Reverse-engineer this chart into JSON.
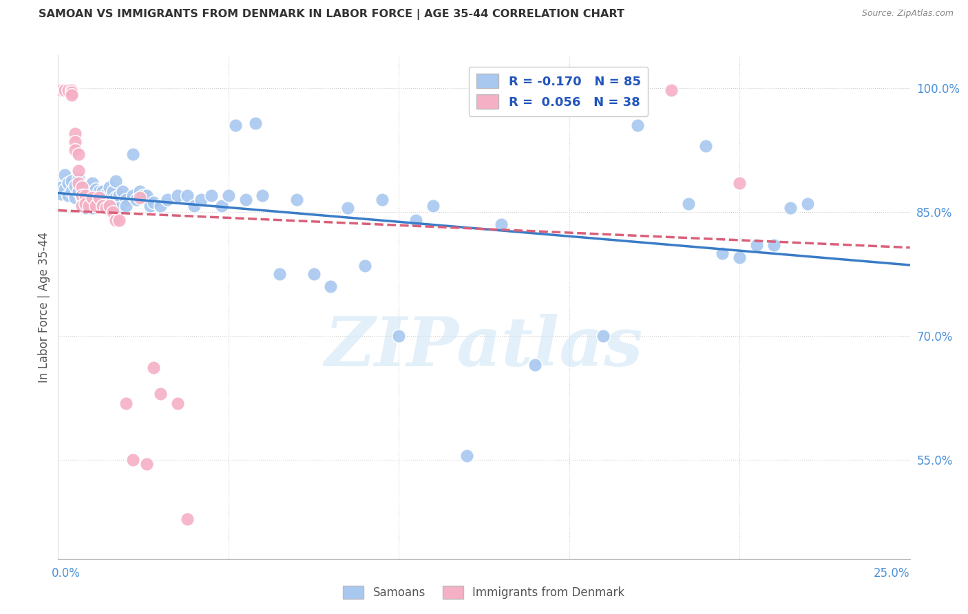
{
  "title": "SAMOAN VS IMMIGRANTS FROM DENMARK IN LABOR FORCE | AGE 35-44 CORRELATION CHART",
  "source": "Source: ZipAtlas.com",
  "ylabel": "In Labor Force | Age 35-44",
  "blue_color": "#a8c8f0",
  "pink_color": "#f5b0c5",
  "blue_line_color": "#3a7cc7",
  "pink_line_color": "#d9607a",
  "watermark_text": "ZIPatlas",
  "xmin": 0.0,
  "xmax": 0.25,
  "ymin": 0.43,
  "ymax": 1.04,
  "gridline_y": [
    0.55,
    0.7,
    0.85,
    1.0
  ],
  "gridline_x": [
    0.05,
    0.1,
    0.15,
    0.2,
    0.25
  ],
  "blue_dots": [
    [
      0.001,
      0.88
    ],
    [
      0.001,
      0.872
    ],
    [
      0.002,
      0.895
    ],
    [
      0.002,
      0.878
    ],
    [
      0.003,
      0.885
    ],
    [
      0.003,
      0.87
    ],
    [
      0.004,
      0.888
    ],
    [
      0.004,
      0.875
    ],
    [
      0.005,
      0.882
    ],
    [
      0.005,
      0.868
    ],
    [
      0.006,
      0.89
    ],
    [
      0.006,
      0.875
    ],
    [
      0.007,
      0.882
    ],
    [
      0.007,
      0.868
    ],
    [
      0.007,
      0.858
    ],
    [
      0.008,
      0.88
    ],
    [
      0.008,
      0.865
    ],
    [
      0.008,
      0.855
    ],
    [
      0.009,
      0.878
    ],
    [
      0.009,
      0.862
    ],
    [
      0.01,
      0.885
    ],
    [
      0.01,
      0.87
    ],
    [
      0.01,
      0.855
    ],
    [
      0.011,
      0.878
    ],
    [
      0.011,
      0.862
    ],
    [
      0.012,
      0.875
    ],
    [
      0.012,
      0.862
    ],
    [
      0.013,
      0.875
    ],
    [
      0.013,
      0.858
    ],
    [
      0.014,
      0.872
    ],
    [
      0.014,
      0.858
    ],
    [
      0.015,
      0.88
    ],
    [
      0.015,
      0.862
    ],
    [
      0.016,
      0.875
    ],
    [
      0.016,
      0.858
    ],
    [
      0.017,
      0.888
    ],
    [
      0.017,
      0.868
    ],
    [
      0.018,
      0.87
    ],
    [
      0.018,
      0.855
    ],
    [
      0.019,
      0.875
    ],
    [
      0.02,
      0.865
    ],
    [
      0.02,
      0.858
    ],
    [
      0.022,
      0.92
    ],
    [
      0.022,
      0.87
    ],
    [
      0.023,
      0.865
    ],
    [
      0.024,
      0.875
    ],
    [
      0.025,
      0.87
    ],
    [
      0.026,
      0.87
    ],
    [
      0.027,
      0.858
    ],
    [
      0.028,
      0.862
    ],
    [
      0.03,
      0.858
    ],
    [
      0.032,
      0.865
    ],
    [
      0.035,
      0.87
    ],
    [
      0.038,
      0.87
    ],
    [
      0.04,
      0.858
    ],
    [
      0.042,
      0.865
    ],
    [
      0.045,
      0.87
    ],
    [
      0.048,
      0.858
    ],
    [
      0.05,
      0.87
    ],
    [
      0.052,
      0.955
    ],
    [
      0.055,
      0.865
    ],
    [
      0.058,
      0.958
    ],
    [
      0.06,
      0.87
    ],
    [
      0.065,
      0.775
    ],
    [
      0.07,
      0.865
    ],
    [
      0.075,
      0.775
    ],
    [
      0.08,
      0.76
    ],
    [
      0.085,
      0.855
    ],
    [
      0.09,
      0.785
    ],
    [
      0.095,
      0.865
    ],
    [
      0.1,
      0.7
    ],
    [
      0.105,
      0.84
    ],
    [
      0.11,
      0.858
    ],
    [
      0.12,
      0.555
    ],
    [
      0.13,
      0.835
    ],
    [
      0.14,
      0.665
    ],
    [
      0.16,
      0.7
    ],
    [
      0.17,
      0.955
    ],
    [
      0.185,
      0.86
    ],
    [
      0.19,
      0.93
    ],
    [
      0.195,
      0.8
    ],
    [
      0.2,
      0.795
    ],
    [
      0.205,
      0.81
    ],
    [
      0.21,
      0.81
    ],
    [
      0.215,
      0.855
    ],
    [
      0.22,
      0.86
    ]
  ],
  "pink_dots": [
    [
      0.001,
      0.998
    ],
    [
      0.002,
      0.998
    ],
    [
      0.002,
      0.998
    ],
    [
      0.003,
      0.998
    ],
    [
      0.004,
      0.998
    ],
    [
      0.004,
      0.995
    ],
    [
      0.004,
      0.992
    ],
    [
      0.005,
      0.945
    ],
    [
      0.005,
      0.935
    ],
    [
      0.005,
      0.925
    ],
    [
      0.006,
      0.92
    ],
    [
      0.006,
      0.9
    ],
    [
      0.006,
      0.885
    ],
    [
      0.007,
      0.88
    ],
    [
      0.007,
      0.87
    ],
    [
      0.007,
      0.858
    ],
    [
      0.008,
      0.87
    ],
    [
      0.008,
      0.86
    ],
    [
      0.009,
      0.858
    ],
    [
      0.01,
      0.868
    ],
    [
      0.011,
      0.858
    ],
    [
      0.012,
      0.868
    ],
    [
      0.013,
      0.858
    ],
    [
      0.014,
      0.855
    ],
    [
      0.015,
      0.858
    ],
    [
      0.016,
      0.85
    ],
    [
      0.017,
      0.84
    ],
    [
      0.018,
      0.84
    ],
    [
      0.02,
      0.618
    ],
    [
      0.022,
      0.55
    ],
    [
      0.024,
      0.868
    ],
    [
      0.026,
      0.545
    ],
    [
      0.028,
      0.662
    ],
    [
      0.03,
      0.63
    ],
    [
      0.035,
      0.618
    ],
    [
      0.038,
      0.478
    ],
    [
      0.18,
      0.998
    ],
    [
      0.2,
      0.885
    ]
  ]
}
